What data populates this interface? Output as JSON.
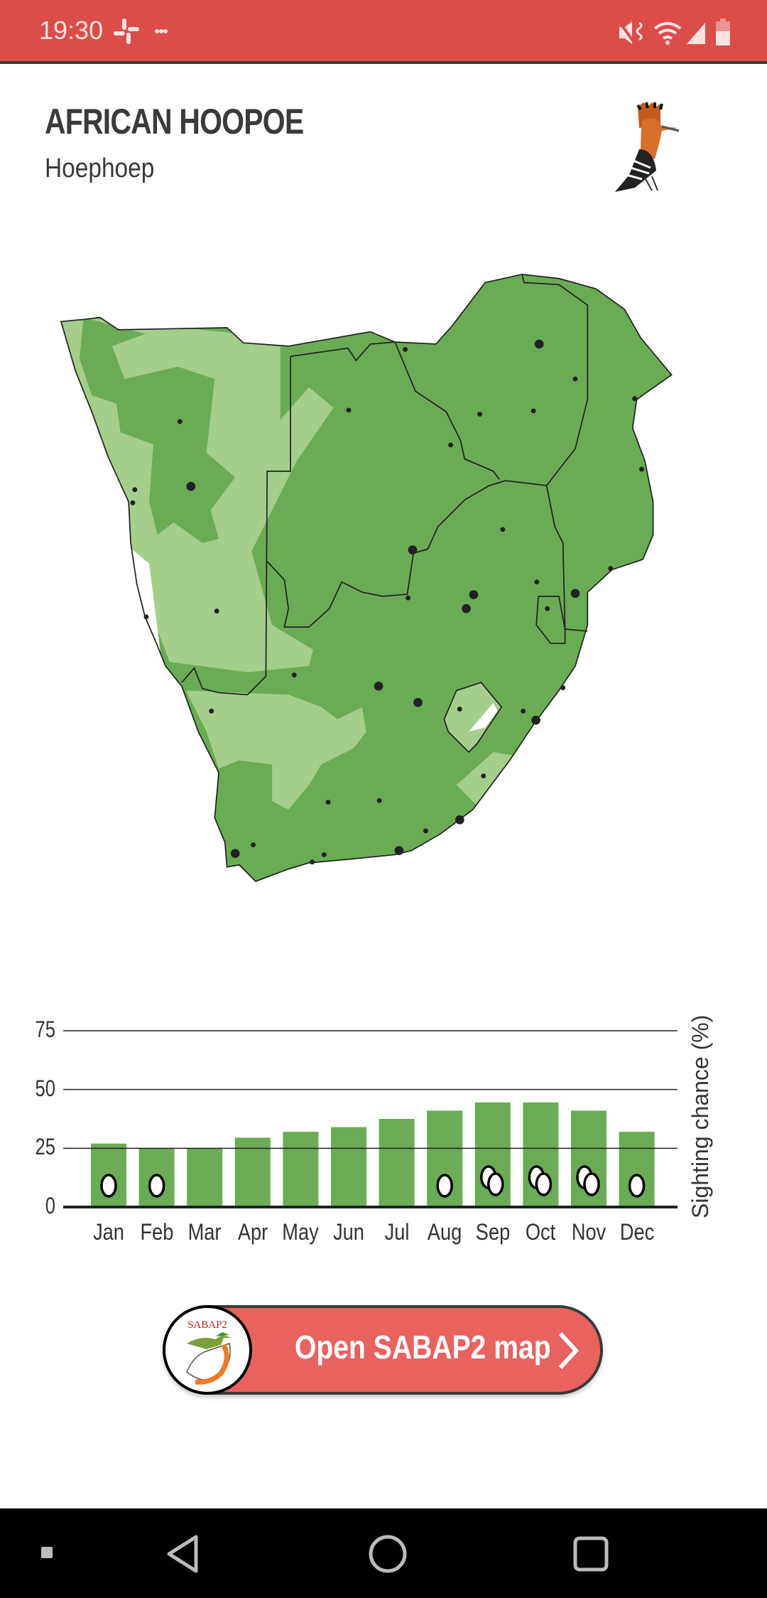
{
  "status_bar": {
    "time": "19:30",
    "icons": [
      "slack-icon",
      "more-icon",
      "mute-icon",
      "wifi-icon",
      "signal-icon",
      "battery-icon"
    ]
  },
  "header": {
    "title": "AFRICAN HOOPOE",
    "subtitle": "Hoephoep",
    "icon": "hoopoe-bird-illustration"
  },
  "map": {
    "colors": {
      "high": "#6AAC54",
      "low": "#A5CE8A",
      "border": "#222222",
      "city": "#222222"
    }
  },
  "chart_data": {
    "type": "bar",
    "categories": [
      "Jan",
      "Feb",
      "Mar",
      "Apr",
      "May",
      "Jun",
      "Jul",
      "Aug",
      "Sep",
      "Oct",
      "Nov",
      "Dec"
    ],
    "values": [
      27,
      25,
      25,
      29.5,
      32,
      34,
      37.5,
      41,
      44.5,
      44.5,
      41,
      32
    ],
    "breeding_eggs": [
      1,
      1,
      0,
      0,
      0,
      0,
      0,
      1,
      2,
      2,
      2,
      1
    ],
    "ylabel": "Sighting chance (%)",
    "yticks": [
      "0",
      "25",
      "50",
      "75"
    ],
    "ylim": [
      0,
      75
    ],
    "grid": true,
    "color": "#6AAC54"
  },
  "button": {
    "label": "Open SABAP2 map",
    "logo_text": "SABAP2",
    "color": "#E8625E"
  },
  "nav_bar": {
    "icons": [
      "recents-icon",
      "back-icon",
      "home-icon",
      "overview-icon"
    ]
  }
}
